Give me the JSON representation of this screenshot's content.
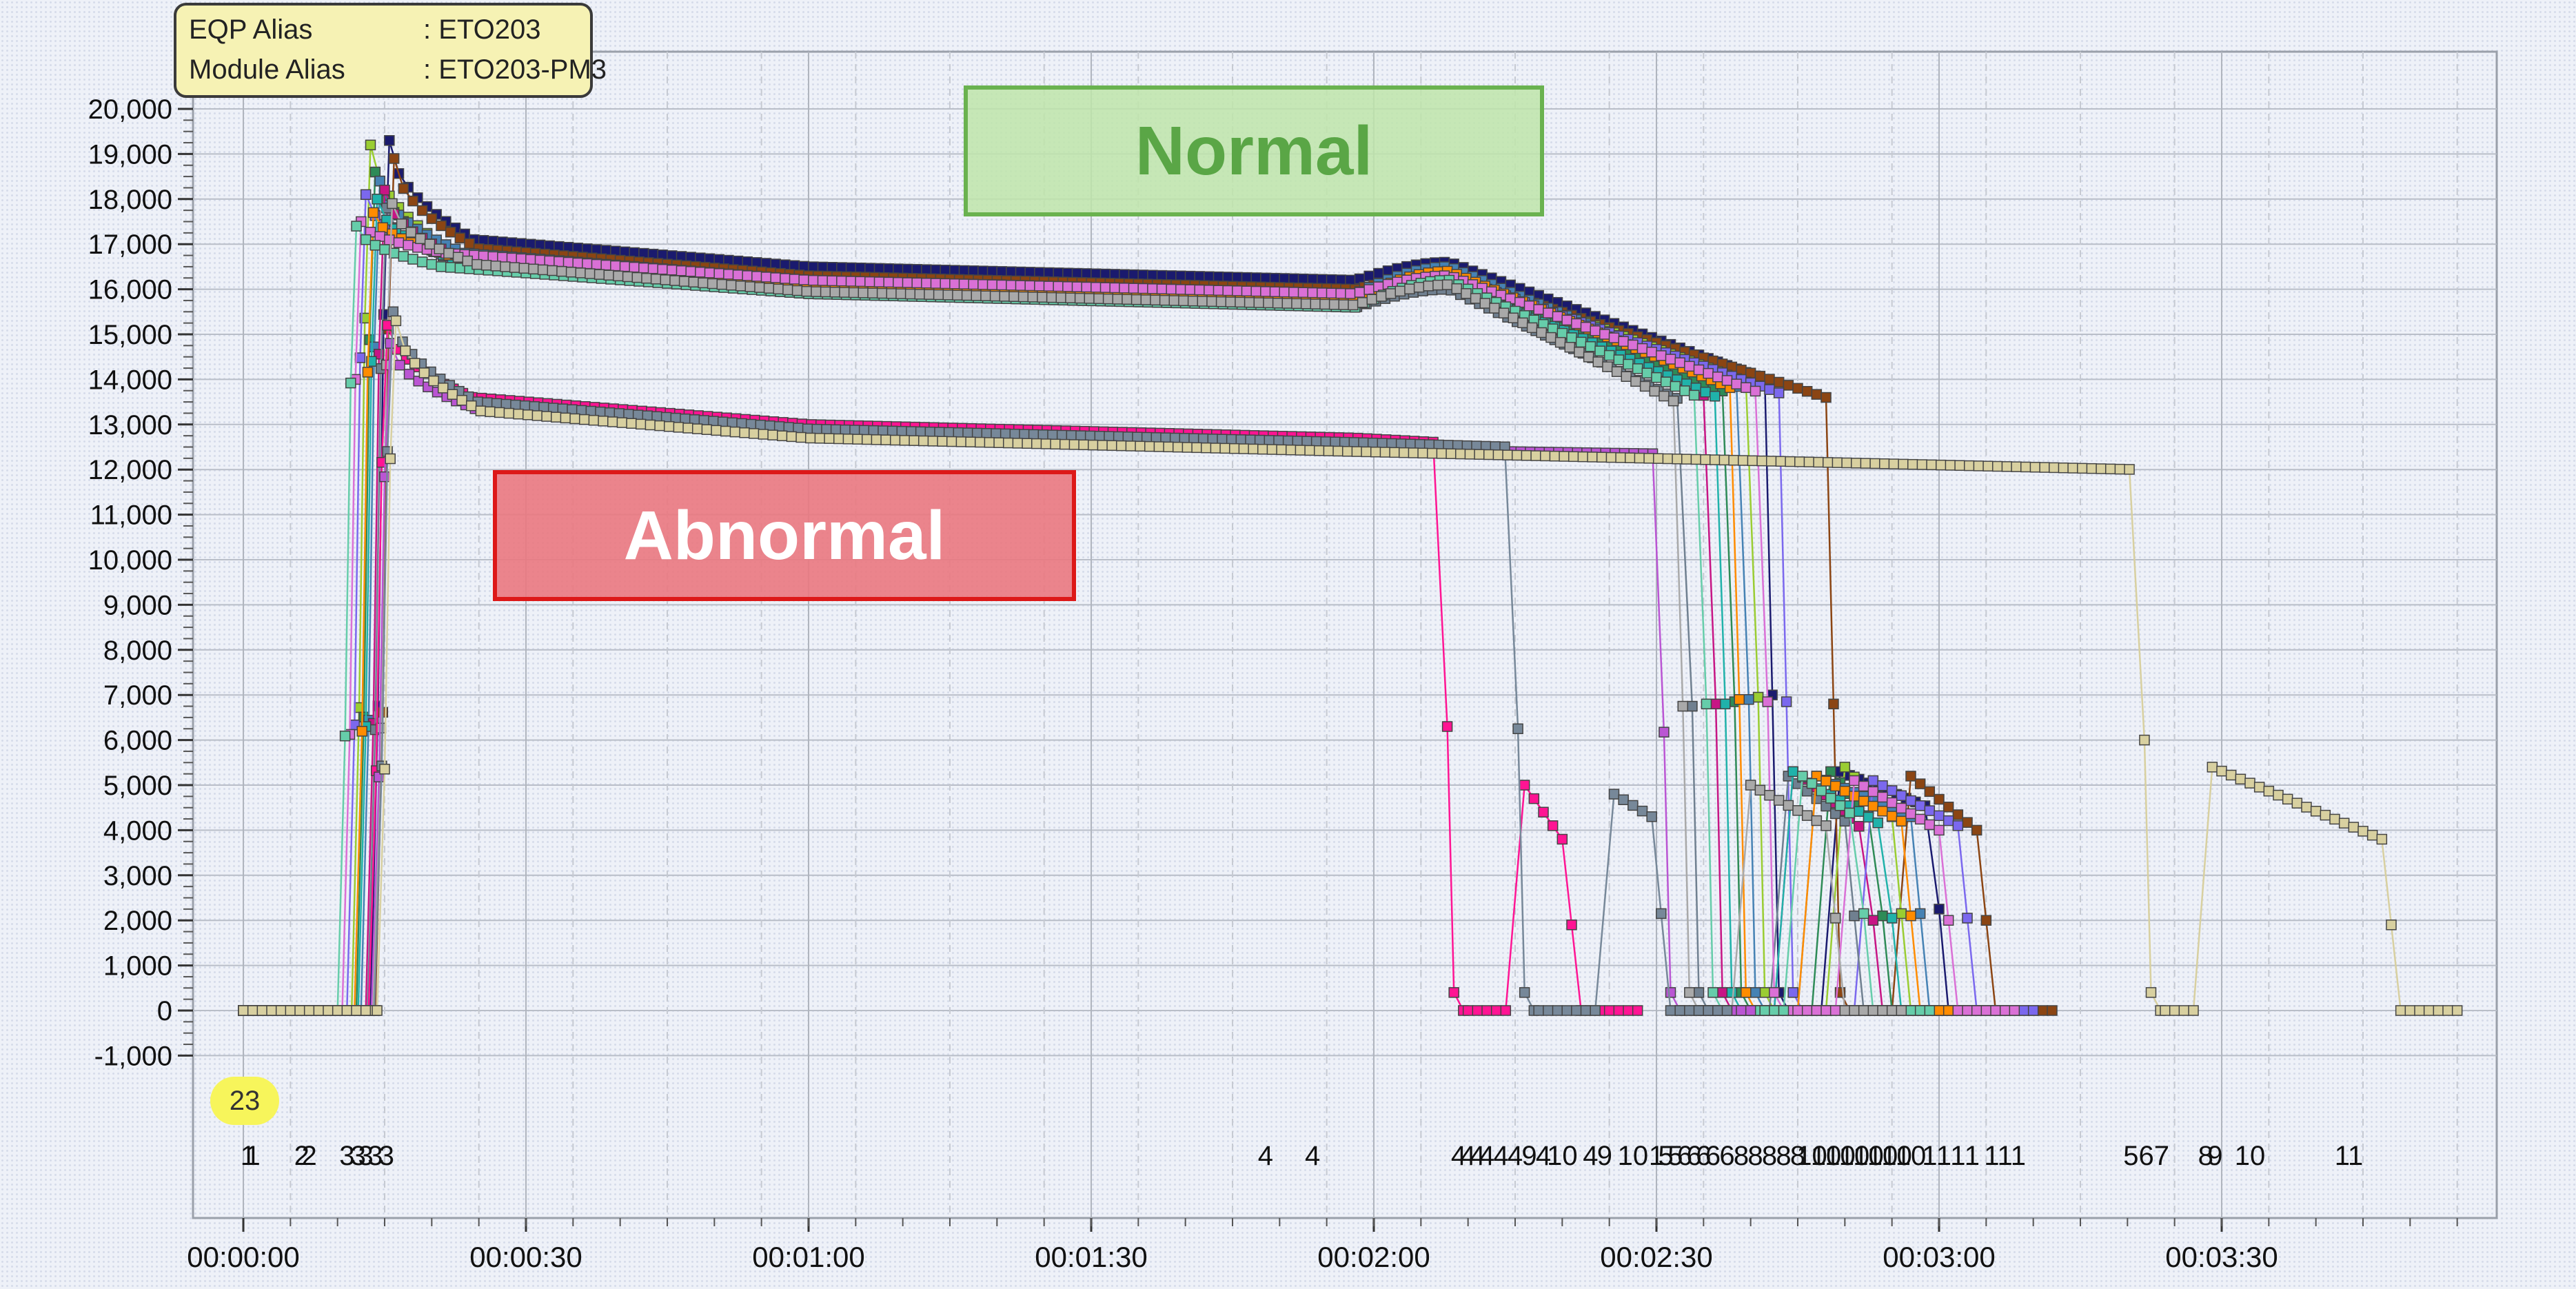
{
  "info": {
    "eqp_key": "EQP Alias",
    "eqp_value": ": ETO203",
    "module_key": "Module Alias",
    "module_value": ": ETO203-PM3"
  },
  "annotations": {
    "normal": "Normal",
    "abnormal": "Abnormal",
    "badge": "23"
  },
  "event_labels": [
    {
      "t": 0.5,
      "text": "1"
    },
    {
      "t": 1.0,
      "text": "1"
    },
    {
      "t": 6.2,
      "text": "2"
    },
    {
      "t": 7.0,
      "text": "2"
    },
    {
      "t": 11.0,
      "text": "3"
    },
    {
      "t": 12.2,
      "text": "3"
    },
    {
      "t": 13.0,
      "text": "3"
    },
    {
      "t": 14.0,
      "text": "3"
    },
    {
      "t": 15.2,
      "text": "3"
    },
    {
      "t": 108.5,
      "text": "4"
    },
    {
      "t": 113.5,
      "text": "4"
    },
    {
      "t": 129.0,
      "text": "4"
    },
    {
      "t": 130.0,
      "text": "4"
    },
    {
      "t": 131.0,
      "text": "4"
    },
    {
      "t": 132.0,
      "text": "4"
    },
    {
      "t": 133.5,
      "text": "4"
    },
    {
      "t": 135.0,
      "text": "4"
    },
    {
      "t": 136.5,
      "text": "9"
    },
    {
      "t": 138.0,
      "text": "4"
    },
    {
      "t": 140.0,
      "text": "10"
    },
    {
      "t": 143.0,
      "text": "4"
    },
    {
      "t": 144.5,
      "text": "9"
    },
    {
      "t": 147.5,
      "text": "10"
    },
    {
      "t": 150.0,
      "text": "1"
    },
    {
      "t": 151.0,
      "text": "5"
    },
    {
      "t": 152.0,
      "text": "5"
    },
    {
      "t": 153.0,
      "text": "6"
    },
    {
      "t": 154.0,
      "text": "6"
    },
    {
      "t": 155.0,
      "text": "6"
    },
    {
      "t": 156.0,
      "text": "6"
    },
    {
      "t": 157.5,
      "text": "6"
    },
    {
      "t": 159.0,
      "text": "8"
    },
    {
      "t": 160.5,
      "text": "8"
    },
    {
      "t": 162.0,
      "text": "8"
    },
    {
      "t": 163.5,
      "text": "8"
    },
    {
      "t": 165.0,
      "text": "8"
    },
    {
      "t": 166.5,
      "text": "10"
    },
    {
      "t": 168.0,
      "text": "10"
    },
    {
      "t": 169.5,
      "text": "10"
    },
    {
      "t": 171.0,
      "text": "10"
    },
    {
      "t": 172.5,
      "text": "10"
    },
    {
      "t": 174.0,
      "text": "10"
    },
    {
      "t": 175.5,
      "text": "10"
    },
    {
      "t": 177.0,
      "text": "10"
    },
    {
      "t": 179.0,
      "text": "1"
    },
    {
      "t": 180.5,
      "text": "1"
    },
    {
      "t": 182.0,
      "text": "1"
    },
    {
      "t": 183.5,
      "text": "1"
    },
    {
      "t": 187.0,
      "text": "111"
    },
    {
      "t": 202.0,
      "text": "567"
    },
    {
      "t": 208.3,
      "text": "8"
    },
    {
      "t": 209.3,
      "text": "9"
    },
    {
      "t": 213.0,
      "text": "10"
    },
    {
      "t": 223.5,
      "text": "11"
    }
  ],
  "chart_data": {
    "type": "line",
    "title": "",
    "xlabel": "",
    "ylabel": "",
    "x_unit": "seconds",
    "x_ticks": [
      "00:00:00",
      "00:00:30",
      "00:01:00",
      "00:01:30",
      "00:02:00",
      "00:02:30",
      "00:03:00",
      "00:03:30"
    ],
    "x_tick_values": [
      0,
      30,
      60,
      90,
      120,
      150,
      180,
      210
    ],
    "xlim": [
      -5,
      240
    ],
    "ylim": [
      -1000,
      20000
    ],
    "y_ticks": [
      "-1,000",
      "0",
      "1,000",
      "2,000",
      "3,000",
      "4,000",
      "5,000",
      "6,000",
      "7,000",
      "8,000",
      "9,000",
      "10,000",
      "11,000",
      "12,000",
      "13,000",
      "14,000",
      "15,000",
      "16,000",
      "17,000",
      "18,000",
      "19,000",
      "20,000"
    ],
    "grid": true,
    "marker": "square",
    "series": [
      {
        "color": "#1a1a6e",
        "rise": 15.5,
        "peak": 19300,
        "plateau": 16200,
        "shoulder": 16600,
        "end": 14000,
        "stop": 161.5,
        "tail_end": 182,
        "tail_peak": 5300,
        "tail_level": 4500
      },
      {
        "color": "#8b4513",
        "rise": 16.0,
        "peak": 18900,
        "plateau": 16000,
        "shoulder": 16300,
        "end": 13600,
        "stop": 168,
        "tail_end": 187,
        "tail_peak": 5200,
        "tail_level": 4000
      },
      {
        "color": "#9acd32",
        "rise": 13.5,
        "peak": 19200,
        "plateau": 15900,
        "shoulder": 16400,
        "end": 13900,
        "stop": 160,
        "tail_end": 178,
        "tail_peak": 5400,
        "tail_level": 4300
      },
      {
        "color": "#2e8b57",
        "rise": 14.0,
        "peak": 18600,
        "plateau": 15800,
        "shoulder": 16200,
        "end": 13700,
        "stop": 157.5,
        "tail_end": 176,
        "tail_peak": 5300,
        "tail_level": 4200
      },
      {
        "color": "#4682b4",
        "rise": 14.5,
        "peak": 18400,
        "plateau": 15900,
        "shoulder": 16500,
        "end": 13800,
        "stop": 159,
        "tail_end": 180,
        "tail_peak": 5200,
        "tail_level": 4300
      },
      {
        "color": "#c71585",
        "rise": 15.0,
        "peak": 18200,
        "plateau": 15700,
        "shoulder": 16100,
        "end": 13600,
        "stop": 155.5,
        "tail_end": 175,
        "tail_peak": 5300,
        "tail_level": 4000
      },
      {
        "color": "#7b68ee",
        "rise": 13.0,
        "peak": 18100,
        "plateau": 15800,
        "shoulder": 16300,
        "end": 13700,
        "stop": 163,
        "tail_end": 185,
        "tail_peak": 5100,
        "tail_level": 4100
      },
      {
        "color": "#708090",
        "rise": 15.2,
        "peak": 17800,
        "plateau": 15600,
        "shoulder": 16000,
        "end": 13500,
        "stop": 153,
        "tail_end": 173,
        "tail_peak": 5200,
        "tail_level": 4200
      },
      {
        "color": "#20b2aa",
        "rise": 14.2,
        "peak": 18000,
        "plateau": 15700,
        "shoulder": 16200,
        "end": 13600,
        "stop": 156.5,
        "tail_end": 177,
        "tail_peak": 5300,
        "tail_level": 4100
      },
      {
        "color": "#ff8c00",
        "rise": 13.8,
        "peak": 17700,
        "plateau": 15800,
        "shoulder": 16400,
        "end": 13800,
        "stop": 158,
        "tail_end": 179,
        "tail_peak": 5200,
        "tail_level": 4200
      },
      {
        "color": "#da70d6",
        "rise": 12.5,
        "peak": 17500,
        "plateau": 15900,
        "shoulder": 16300,
        "end": 13700,
        "stop": 161,
        "tail_end": 183,
        "tail_peak": 5100,
        "tail_level": 4000
      },
      {
        "color": "#66cdaa",
        "rise": 12.0,
        "peak": 17400,
        "plateau": 15600,
        "shoulder": 16200,
        "end": 13600,
        "stop": 154.5,
        "tail_end": 174,
        "tail_peak": 5200,
        "tail_level": 4300
      },
      {
        "color": "#a9a9a9",
        "rise": 15.8,
        "peak": 17900,
        "plateau": 15650,
        "shoulder": 16100,
        "end": 13500,
        "stop": 152,
        "tail_end": 171,
        "tail_peak": 5000,
        "tail_level": 4100
      },
      {
        "color": "#ff1493",
        "rise": 15.3,
        "peak": 15200,
        "plateau": 12700,
        "shoulder": 12700,
        "end": 12600,
        "stop": 127,
        "tail_end": 140.5,
        "tail_peak": 5000,
        "tail_level": 3800,
        "abnormal": true
      },
      {
        "color": "#ba55d3",
        "rise": 15.6,
        "peak": 14800,
        "plateau": 12450,
        "shoulder": 12450,
        "end": 12350,
        "stop": 150,
        "tail_end": 0,
        "tail_peak": 0,
        "tail_level": 0,
        "abnormal": true
      },
      {
        "color": "#778899",
        "rise": 15.9,
        "peak": 15500,
        "plateau": 12600,
        "shoulder": 12600,
        "end": 12500,
        "stop": 134.5,
        "tail_end": 148.5,
        "tail_peak": 4800,
        "tail_level": 4300,
        "abnormal": true
      },
      {
        "color": "#d8d0a0",
        "rise": 16.2,
        "peak": 15300,
        "plateau": 12400,
        "shoulder": 12400,
        "end": 12000,
        "stop": 201,
        "tail_end": 230,
        "tail_peak": 5400,
        "tail_level": 3800,
        "abnormal": true
      }
    ]
  }
}
